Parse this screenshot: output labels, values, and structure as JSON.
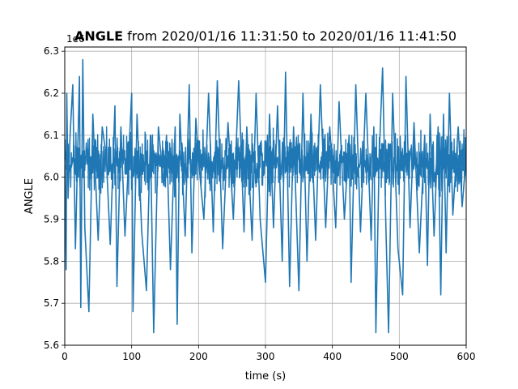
{
  "chart_data": {
    "type": "line",
    "title_bold": "ANGLE",
    "title_rest": " from 2020/01/16 11:31:50 to 2020/01/16 11:41:50",
    "xlabel": "time (s)",
    "ylabel": "ANGLE",
    "offset_text": "1e6",
    "xlim": [
      0,
      600
    ],
    "ylim": [
      5.6,
      6.31
    ],
    "xticks": [
      0,
      100,
      200,
      300,
      400,
      500,
      600
    ],
    "yticks": [
      5.6,
      5.7,
      5.8,
      5.9,
      6.0,
      6.1,
      6.2,
      6.3
    ],
    "ytick_labels": [
      "5.6",
      "5.7",
      "5.8",
      "5.9",
      "6.0",
      "6.1",
      "6.2",
      "6.3"
    ],
    "grid": true,
    "series": [
      {
        "color": "#1f77b4",
        "x": [
          0,
          2,
          3,
          5,
          8,
          12,
          16,
          22,
          24,
          27,
          30,
          36,
          42,
          50,
          56,
          62,
          68,
          75,
          78,
          84,
          90,
          100,
          102,
          108,
          115,
          122,
          128,
          133,
          140,
          148,
          152,
          158,
          165,
          168,
          172,
          180,
          186,
          190,
          196,
          200,
          208,
          215,
          222,
          228,
          236,
          244,
          252,
          260,
          268,
          272,
          280,
          286,
          292,
          300,
          306,
          312,
          318,
          325,
          330,
          336,
          342,
          350,
          356,
          362,
          368,
          375,
          382,
          390,
          396,
          400,
          405,
          410,
          418,
          425,
          428,
          435,
          442,
          450,
          458,
          462,
          465,
          470,
          475,
          480,
          484,
          490,
          498,
          505,
          510,
          516,
          522,
          530,
          538,
          542,
          546,
          552,
          558,
          562,
          566,
          570,
          575,
          580,
          588,
          594,
          600
        ],
        "y": [
          6.03,
          5.78,
          6.2,
          5.95,
          6.1,
          6.22,
          5.83,
          6.24,
          5.69,
          6.28,
          5.88,
          5.68,
          6.15,
          5.85,
          6.12,
          6.05,
          5.84,
          6.17,
          5.74,
          6.12,
          5.86,
          6.2,
          5.68,
          6.15,
          5.87,
          5.73,
          6.1,
          5.63,
          6.12,
          5.98,
          6.1,
          5.78,
          6.12,
          5.65,
          6.15,
          5.86,
          6.22,
          5.82,
          6.14,
          6.04,
          5.9,
          6.2,
          5.87,
          6.23,
          5.83,
          6.13,
          5.9,
          6.23,
          5.87,
          6.12,
          5.85,
          6.2,
          5.9,
          5.75,
          6.15,
          5.88,
          6.17,
          5.8,
          6.25,
          5.74,
          6.12,
          5.73,
          6.2,
          5.8,
          6.15,
          5.85,
          6.22,
          5.88,
          6.12,
          6.02,
          5.88,
          6.18,
          5.9,
          6.1,
          5.75,
          6.22,
          5.87,
          6.2,
          5.85,
          6.12,
          5.63,
          6.05,
          6.26,
          5.88,
          5.63,
          6.2,
          5.83,
          5.72,
          6.24,
          5.88,
          6.13,
          5.82,
          6.1,
          5.79,
          6.15,
          5.86,
          6.12,
          5.72,
          6.15,
          5.82,
          6.2,
          5.91,
          6.12,
          5.93,
          6.05
        ]
      }
    ]
  }
}
